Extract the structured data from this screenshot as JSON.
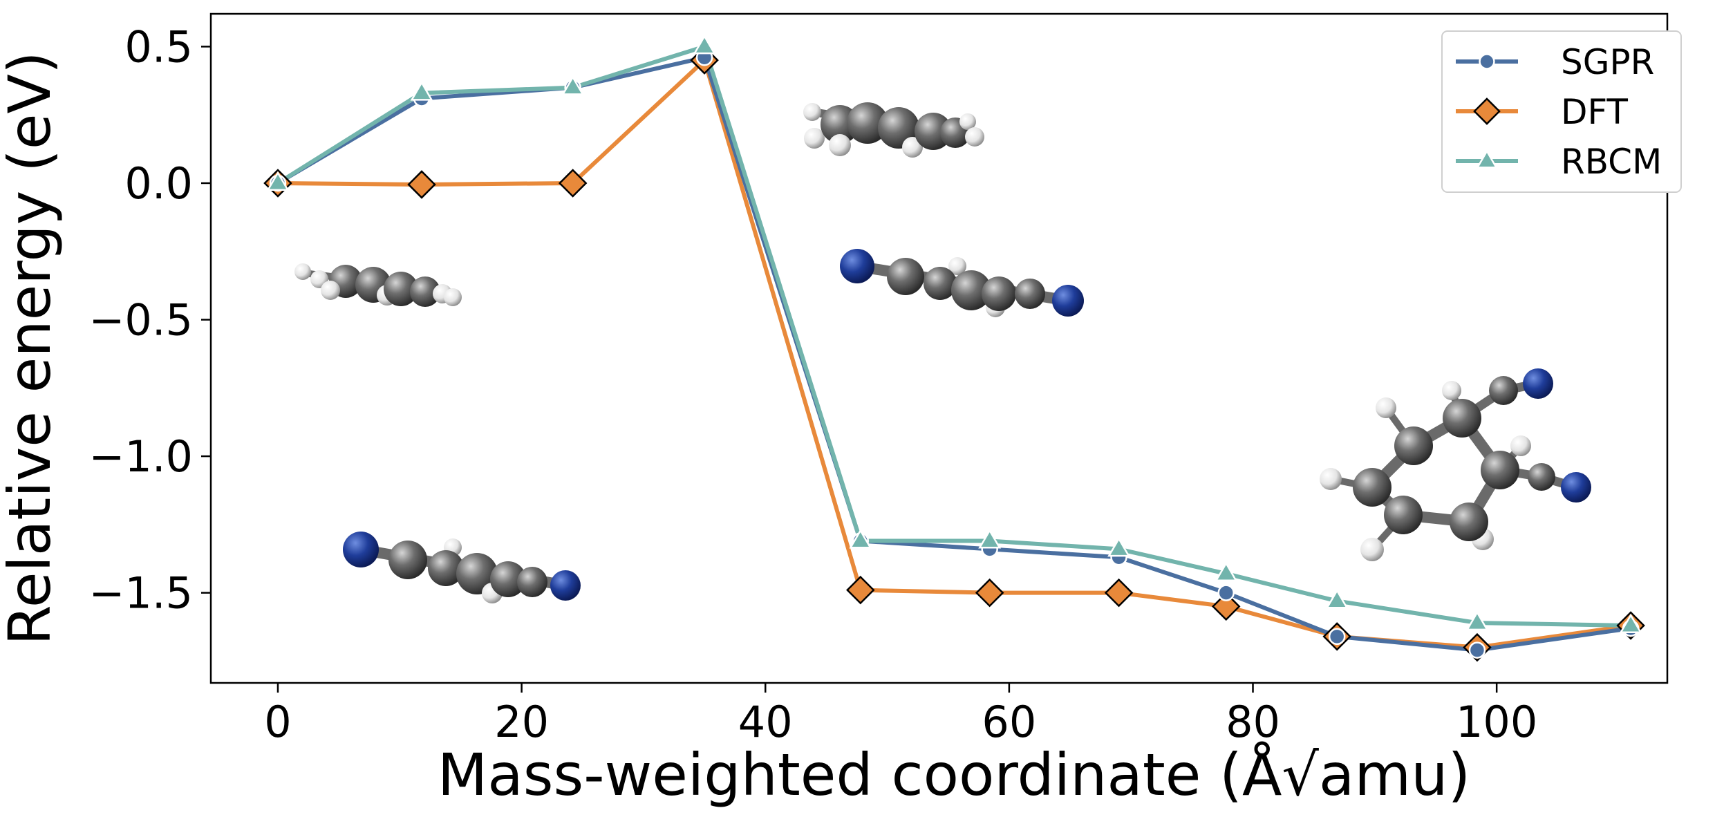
{
  "chart_data": {
    "type": "line",
    "xlabel": "Mass-weighted coordinate (Å√amu)",
    "ylabel": "Relative energy (eV)",
    "xlim": [
      -5.5,
      114
    ],
    "ylim": [
      -1.83,
      0.62
    ],
    "xticks": [
      0,
      20,
      40,
      60,
      80,
      100
    ],
    "xtick_labels": [
      "0",
      "20",
      "40",
      "60",
      "80",
      "100"
    ],
    "yticks": [
      0.5,
      0.0,
      -0.5,
      -1.0,
      -1.5
    ],
    "ytick_labels": [
      "0.5",
      "0.0",
      "−0.5",
      "−1.0",
      "−1.5"
    ],
    "grid": false,
    "legend_position": "top-right",
    "series": [
      {
        "name": "SGPR",
        "color": "#4a6fa0",
        "marker": "circle",
        "x": [
          0,
          11.8,
          24.2,
          35.0,
          47.8,
          58.4,
          69.0,
          77.8,
          86.9,
          98.4,
          111.0
        ],
        "y": [
          0.0,
          0.31,
          0.35,
          0.46,
          -1.31,
          -1.34,
          -1.37,
          -1.5,
          -1.66,
          -1.71,
          -1.63
        ]
      },
      {
        "name": "DFT",
        "color": "#e8893a",
        "marker": "diamond",
        "x": [
          0,
          11.8,
          24.2,
          35.0,
          47.8,
          58.4,
          69.0,
          77.8,
          86.9,
          98.4,
          111.0
        ],
        "y": [
          0.0,
          -0.005,
          0.0,
          0.45,
          -1.49,
          -1.5,
          -1.5,
          -1.55,
          -1.66,
          -1.7,
          -1.62
        ]
      },
      {
        "name": "RBCM",
        "color": "#72b4ac",
        "marker": "triangle",
        "x": [
          0,
          11.8,
          24.2,
          35.0,
          47.8,
          58.4,
          69.0,
          77.8,
          86.9,
          98.4,
          111.0
        ],
        "y": [
          0.0,
          0.33,
          0.35,
          0.5,
          -1.31,
          -1.31,
          -1.34,
          -1.43,
          -1.53,
          -1.61,
          -1.62
        ]
      }
    ]
  },
  "molecules": [
    {
      "name": "benzene-edge-view-a",
      "atoms": "C6H6"
    },
    {
      "name": "benzene-edge-view-b",
      "atoms": "C6H6"
    },
    {
      "name": "dicyano-linear-a",
      "atoms": "C8N2H4"
    },
    {
      "name": "dicyano-linear-b",
      "atoms": "C8N2H4"
    },
    {
      "name": "dicyano-ring",
      "atoms": "C8N2H6"
    }
  ]
}
